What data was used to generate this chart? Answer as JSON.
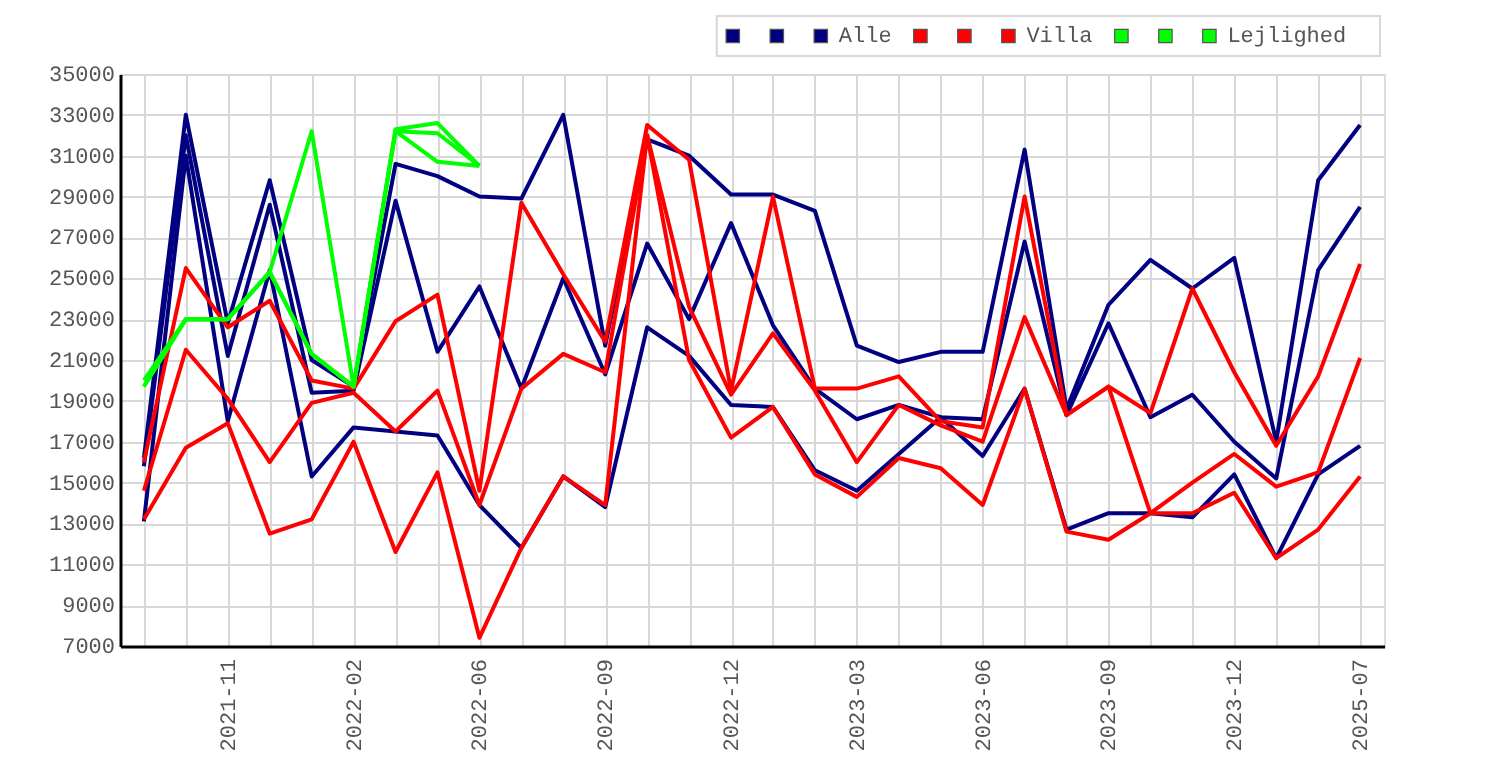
{
  "chart_data": {
    "type": "line",
    "categories": [
      null,
      null,
      "2021-11",
      null,
      null,
      "2022-02",
      null,
      null,
      "2022-06",
      null,
      null,
      "2022-09",
      null,
      null,
      "2022-12",
      null,
      null,
      "2023-03",
      null,
      null,
      "2023-06",
      null,
      null,
      "2023-09",
      null,
      null,
      "2023-12",
      null,
      null,
      "2025-07"
    ],
    "series": [
      {
        "color": "#000080",
        "values": [
          16200,
          33000,
          22800,
          29800,
          21000,
          19700,
          30600,
          30000,
          29000,
          28900,
          33000,
          21700,
          31800,
          31000,
          29100,
          29100,
          28300,
          21700,
          20900,
          21400,
          21400,
          31300,
          18600,
          23700,
          25900,
          24500,
          26000,
          17000,
          29800,
          32500
        ]
      },
      {
        "color": "#000080",
        "values": [
          15800,
          32000,
          21200,
          28600,
          19400,
          19500,
          28800,
          21400,
          24600,
          19600,
          25000,
          20300,
          26700,
          23000,
          27700,
          22700,
          19600,
          18100,
          18800,
          18200,
          18100,
          26800,
          18300,
          22800,
          18200,
          19300,
          17000,
          15200,
          25400,
          28500
        ]
      },
      {
        "name": "Alle",
        "color": "#000080",
        "values": [
          13100,
          31000,
          18000,
          25400,
          15300,
          17700,
          17500,
          17300,
          13900,
          11800,
          15300,
          13800,
          22600,
          21200,
          18800,
          18700,
          15600,
          14600,
          16400,
          18200,
          16300,
          19600,
          12700,
          13500,
          13500,
          13300,
          15400,
          11300,
          15400,
          16800
        ]
      },
      {
        "color": "#ff0000",
        "values": [
          16000,
          25500,
          22600,
          23900,
          20000,
          19600,
          22900,
          24200,
          14600,
          28700,
          25200,
          21900,
          32500,
          30800,
          19500,
          29000,
          19600,
          19600,
          20200,
          18000,
          17700,
          29000,
          18300,
          19700,
          18400,
          24500,
          20400,
          16800,
          20200,
          25700
        ]
      },
      {
        "color": "#ff0000",
        "values": [
          14600,
          21500,
          19100,
          16000,
          18900,
          19400,
          17500,
          19500,
          13900,
          19600,
          21300,
          20400,
          32000,
          23600,
          19300,
          22300,
          19500,
          16000,
          18800,
          17800,
          17000,
          23100,
          18300,
          19700,
          13500,
          15000,
          16400,
          14800,
          15500,
          21100
        ]
      },
      {
        "name": "Villa",
        "color": "#ff0000",
        "values": [
          13200,
          16700,
          17900,
          12500,
          13200,
          17000,
          11600,
          15500,
          7400,
          11800,
          15300,
          13900,
          32000,
          21000,
          17200,
          18700,
          15400,
          14300,
          16200,
          15700,
          13900,
          19600,
          12600,
          12200,
          13500,
          13500,
          14500,
          11300,
          12700,
          15300
        ]
      },
      {
        "color": "#00ff00",
        "values": [
          20000,
          23000,
          23000,
          25300,
          32200,
          19700,
          32300,
          32600,
          30500,
          null,
          null,
          null,
          null,
          null,
          null,
          null,
          null,
          null,
          null,
          null,
          null,
          null,
          null,
          null,
          null,
          null,
          null,
          null,
          null,
          null
        ]
      },
      {
        "color": "#00ff00",
        "values": [
          19700,
          23000,
          23000,
          25300,
          21300,
          19700,
          32200,
          32100,
          30500,
          null,
          null,
          null,
          null,
          null,
          null,
          null,
          null,
          null,
          null,
          null,
          null,
          null,
          null,
          null,
          null,
          null,
          null,
          null,
          null,
          null
        ]
      },
      {
        "name": "Lejlighed",
        "color": "#00ff00",
        "values": [
          19700,
          23000,
          23000,
          25300,
          21300,
          19700,
          32200,
          30700,
          30500,
          null,
          null,
          null,
          null,
          null,
          null,
          null,
          null,
          null,
          null,
          null,
          null,
          null,
          null,
          null,
          null,
          null,
          null,
          null,
          null,
          null
        ]
      }
    ],
    "ylim": [
      7000,
      35000
    ],
    "yticks": [
      7000,
      9000,
      11000,
      13000,
      15000,
      17000,
      19000,
      21000,
      23000,
      25000,
      27000,
      29000,
      31000,
      33000,
      35000
    ],
    "grid": true,
    "legend": "top right",
    "line_style": "solid",
    "marker": "none"
  }
}
